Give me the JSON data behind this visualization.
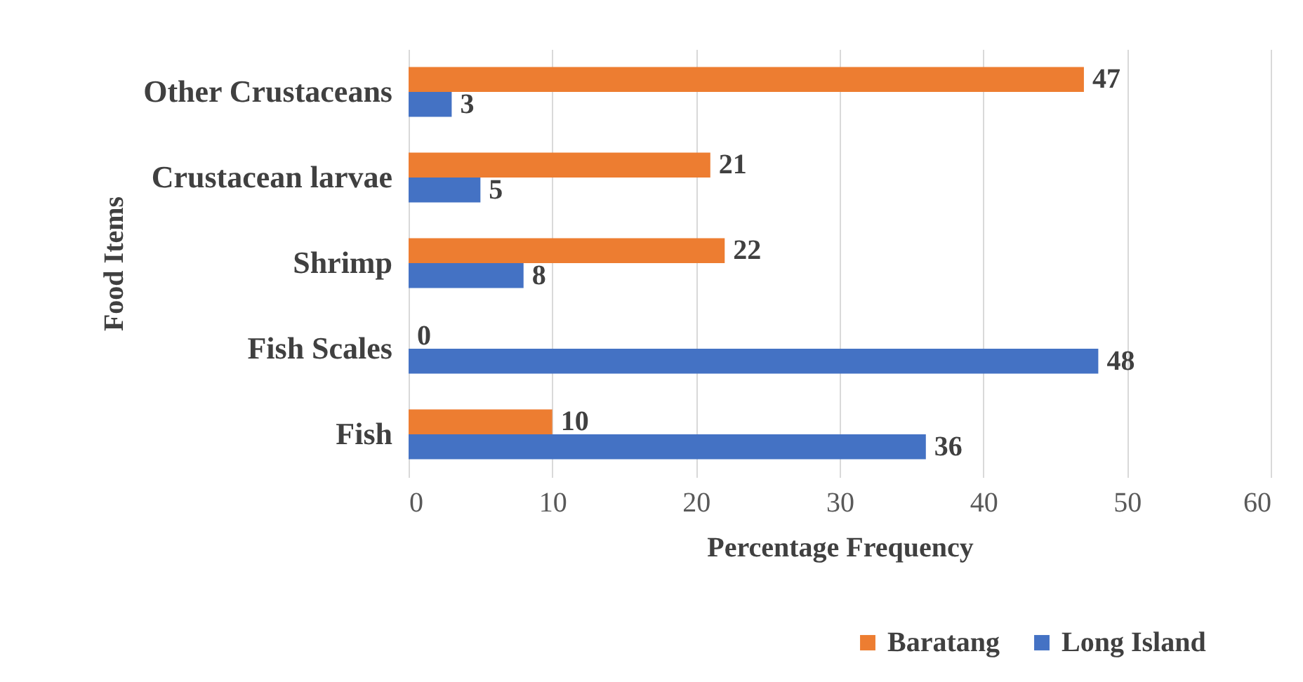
{
  "chart_data": {
    "type": "bar",
    "orientation": "horizontal",
    "xlabel": "Percentage Frequency",
    "ylabel": "Food Items",
    "categories": [
      "Other Crustaceans",
      "Crustacean larvae",
      "Shrimp",
      "Fish Scales",
      "Fish"
    ],
    "series": [
      {
        "name": "Baratang",
        "color": "#ed7d31",
        "values": [
          47,
          21,
          22,
          0,
          10
        ]
      },
      {
        "name": "Long Island",
        "color": "#4472c4",
        "values": [
          3,
          5,
          8,
          48,
          36
        ]
      }
    ],
    "xlim": [
      0,
      60
    ],
    "xticks": [
      0,
      10,
      20,
      30,
      40,
      50,
      60
    ],
    "grid": "x",
    "data_labels": true,
    "legend": "bottom right"
  }
}
